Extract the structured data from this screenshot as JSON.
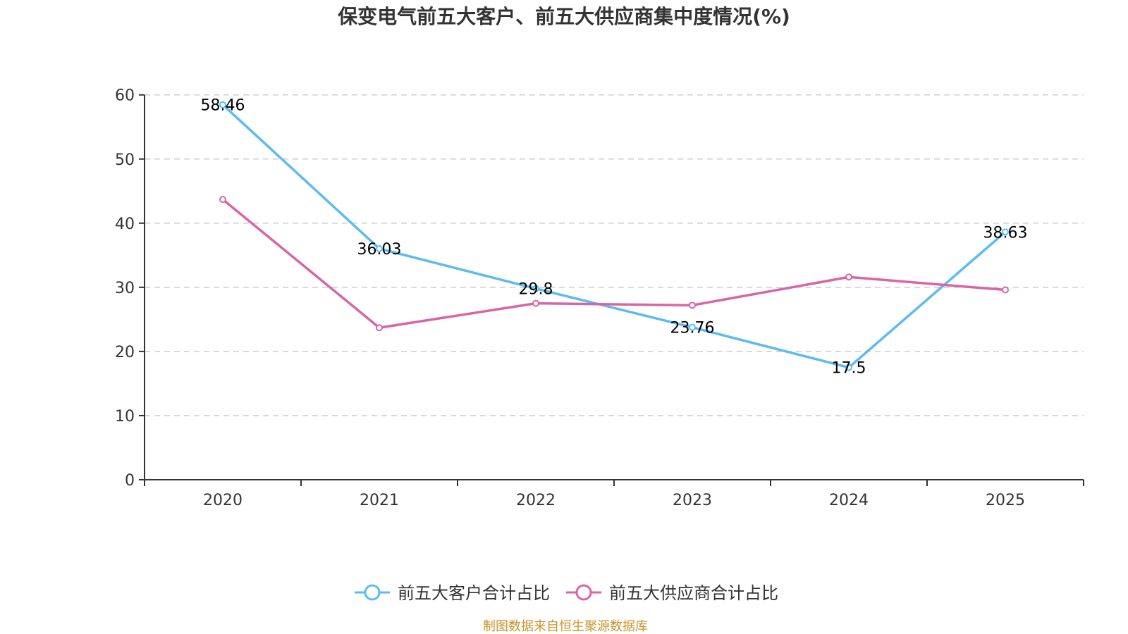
{
  "chart_data": {
    "type": "line",
    "title": "保变电气前五大客户、前五大供应商集中度情况(%)",
    "xlabel": "",
    "ylabel": "",
    "categories": [
      "2020",
      "2021",
      "2022",
      "2023",
      "2024",
      "2025"
    ],
    "ylim": [
      0,
      60
    ],
    "yticks": [
      "0",
      "10",
      "20",
      "30",
      "40",
      "50",
      "60"
    ],
    "grid": true,
    "legend_position": "bottom",
    "series": [
      {
        "name": "前五大客户合计占比",
        "color": "#5bbcf0",
        "values": [
          58.46,
          36.03,
          29.8,
          23.76,
          17.5,
          38.63
        ],
        "labels": [
          "58.46",
          "36.03",
          "29.8",
          "23.76",
          "17.5",
          "38.63"
        ],
        "show_labels": true
      },
      {
        "name": "前五大供应商合计占比",
        "color": "#d865a8",
        "values": [
          43.7,
          23.7,
          27.5,
          27.2,
          31.6,
          29.6
        ],
        "labels": [],
        "show_labels": false
      }
    ],
    "footer": "制图数据来自恒生聚源数据库"
  }
}
